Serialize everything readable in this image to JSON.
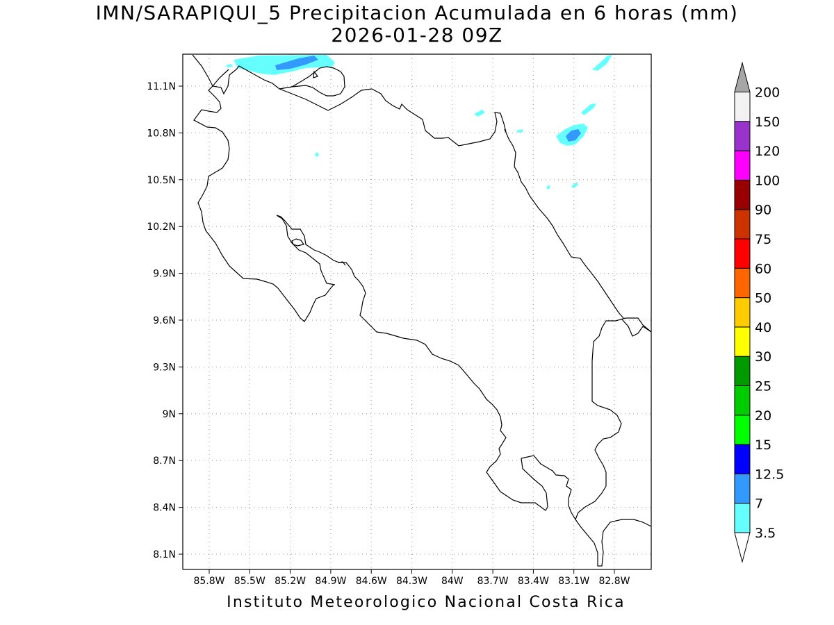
{
  "title": {
    "line1": "IMN/SARAPIQUI_5 Precipitacion Acumulada en 6 horas (mm)",
    "line2": "2026-01-28 09Z"
  },
  "footer": "Instituto Meteorologico Nacional Costa Rica",
  "map": {
    "region": "Costa Rica",
    "lon_range": [
      -86.05,
      -82.5
    ],
    "lat_range": [
      7.95,
      11.3
    ],
    "x_ticks": [
      "85.8W",
      "85.5W",
      "85.2W",
      "84.9W",
      "84.6W",
      "84.3W",
      "84W",
      "83.7W",
      "83.4W",
      "83.1W",
      "82.8W"
    ],
    "y_ticks": [
      "11.1N",
      "10.8N",
      "10.5N",
      "10.2N",
      "9.9N",
      "9.6N",
      "9.3N",
      "9N",
      "8.7N",
      "8.4N",
      "8.1N"
    ],
    "grid": "dotted",
    "field": "6-hour accumulated precipitation (shaded contours)"
  },
  "colorbar": {
    "labels": [
      "3.5",
      "7",
      "12.5",
      "15",
      "20",
      "25",
      "30",
      "40",
      "50",
      "60",
      "75",
      "90",
      "100",
      "120",
      "150",
      "200"
    ],
    "colors": [
      "#ffffff",
      "#66ffff",
      "#3399ff",
      "#0000ff",
      "#00ff00",
      "#00cc00",
      "#009900",
      "#ffff00",
      "#ffcc00",
      "#ff6600",
      "#ff0000",
      "#cc3300",
      "#990000",
      "#ff00ff",
      "#9933cc",
      "#f2f2f2",
      "#a6a6a6"
    ],
    "extend": "both"
  }
}
